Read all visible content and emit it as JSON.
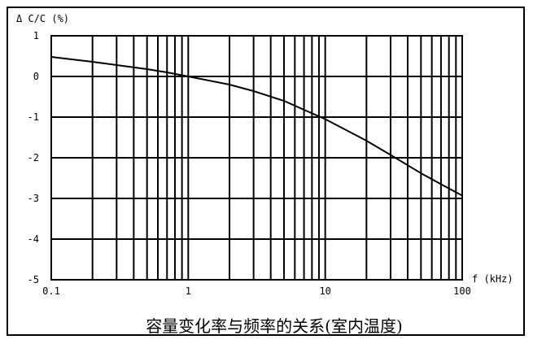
{
  "chart_data": {
    "type": "line",
    "title": "容量变化率与频率的关系(室内温度)",
    "ylabel": "Δ C/C (%)",
    "xlabel": "f (kHz)",
    "xscale": "log",
    "xlim": [
      0.1,
      100
    ],
    "ylim": [
      -5,
      1
    ],
    "grid": true,
    "x_ticks": [
      {
        "value": 0.1,
        "label": "0.1"
      },
      {
        "value": 1,
        "label": "1"
      },
      {
        "value": 10,
        "label": "10"
      },
      {
        "value": 100,
        "label": "100"
      }
    ],
    "y_ticks": [
      {
        "value": 1,
        "label": "1"
      },
      {
        "value": 0,
        "label": "0"
      },
      {
        "value": -1,
        "label": "-1"
      },
      {
        "value": -2,
        "label": "-2"
      },
      {
        "value": -3,
        "label": "-3"
      },
      {
        "value": -4,
        "label": "-4"
      },
      {
        "value": -5,
        "label": "-5"
      }
    ],
    "series": [
      {
        "x": [
          0.1,
          0.2,
          0.3,
          0.5,
          0.7,
          1,
          2,
          3,
          5,
          7,
          10,
          20,
          30,
          50,
          70,
          100
        ],
        "y": [
          0.48,
          0.36,
          0.28,
          0.18,
          0.1,
          0.0,
          -0.2,
          -0.36,
          -0.6,
          -0.82,
          -1.05,
          -1.58,
          -1.93,
          -2.38,
          -2.65,
          -2.93
        ]
      }
    ]
  }
}
